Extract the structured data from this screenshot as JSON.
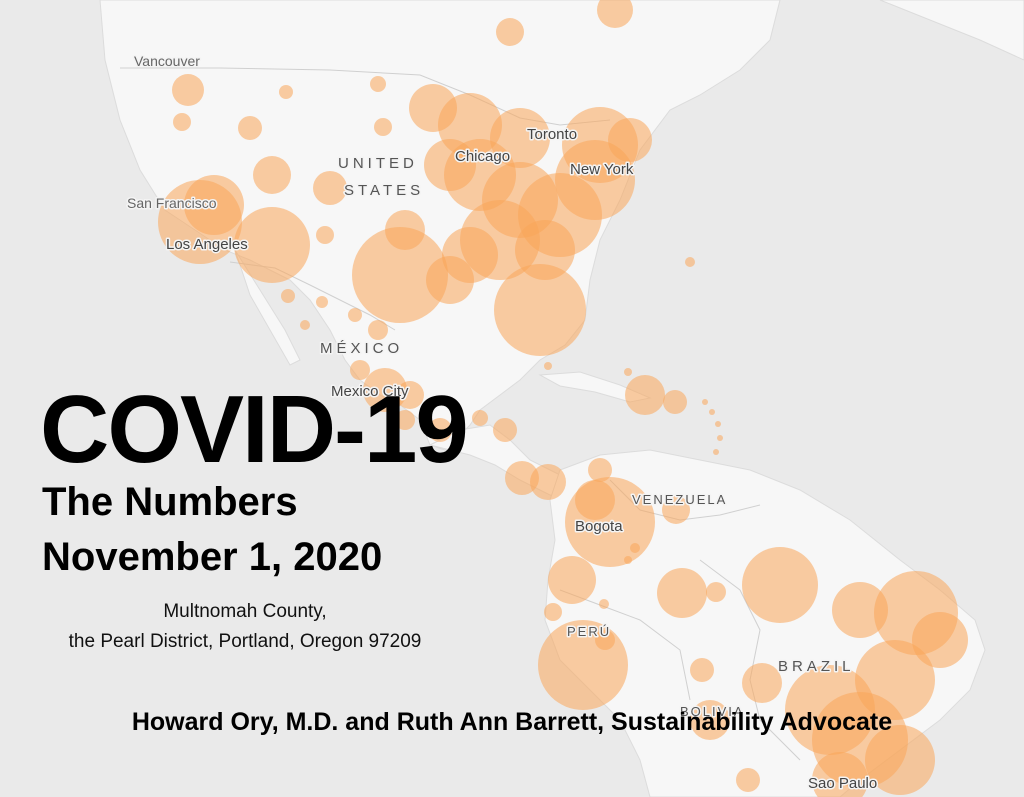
{
  "title": "COVID-19",
  "subtitle_1": "The Numbers",
  "subtitle_2": "November 1, 2020",
  "location_1": "Multnomah County,",
  "location_2": "the Pearl District, Portland, Oregon 97209",
  "authors": "Howard Ory, M.D. and Ruth Ann Barrett, Sustainability Advocate",
  "map": {
    "colors": {
      "land": "#f7f7f7",
      "water": "#e9e9e9",
      "bubble": "#f9a65a",
      "border": "#d6d6d6"
    },
    "cities": {
      "vancouver": "Vancouver",
      "san_francisco": "San Francisco",
      "los_angeles": "Los Angeles",
      "chicago": "Chicago",
      "toronto": "Toronto",
      "new_york": "New York",
      "mexico_city": "Mexico City",
      "bogota": "Bogota",
      "sao_paulo": "Sao Paulo"
    },
    "countries": {
      "us_line1": "UNITED",
      "us_line2": "STATES",
      "mexico": "MÉXICO",
      "venezuela": "VENEZUELA",
      "peru": "PERÚ",
      "brazil": "BRAZIL",
      "bolivia": "BOLIVIA"
    }
  }
}
